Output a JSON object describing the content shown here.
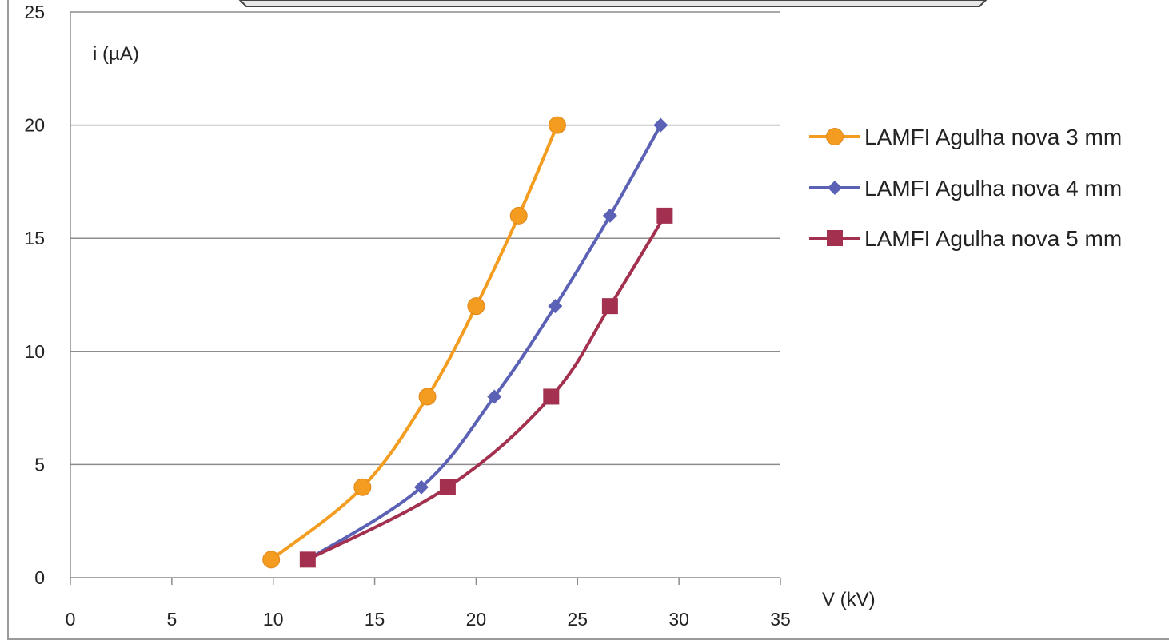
{
  "chart_data": {
    "type": "line",
    "title": "",
    "xlabel": "V (kV)",
    "ylabel": "i (µA)",
    "xlim": [
      0,
      35
    ],
    "ylim": [
      0,
      25
    ],
    "xticks": [
      0,
      5,
      10,
      15,
      20,
      25,
      30,
      35
    ],
    "yticks": [
      0,
      5,
      10,
      15,
      20,
      25
    ],
    "grid": "horizontal",
    "legend_position": "right",
    "smooth": true,
    "series": [
      {
        "name": "LAMFI Agulha nova 3 mm",
        "color": "#F39C1F",
        "marker": "circle",
        "x": [
          9.9,
          14.4,
          17.6,
          20.0,
          22.1,
          24.0
        ],
        "y": [
          0.8,
          4,
          8,
          12,
          16,
          20
        ]
      },
      {
        "name": "LAMFI Agulha nova 4 mm",
        "color": "#5B62B6",
        "marker": "diamond",
        "x": [
          11.7,
          17.3,
          20.9,
          23.9,
          26.6,
          29.1
        ],
        "y": [
          0.8,
          4,
          8,
          12,
          16,
          20
        ]
      },
      {
        "name": "LAMFI Agulha nova 5 mm",
        "color": "#A3304F",
        "marker": "square",
        "x": [
          11.7,
          18.6,
          23.7,
          26.6,
          29.3
        ],
        "y": [
          0.8,
          4,
          8,
          12,
          16
        ]
      }
    ]
  }
}
